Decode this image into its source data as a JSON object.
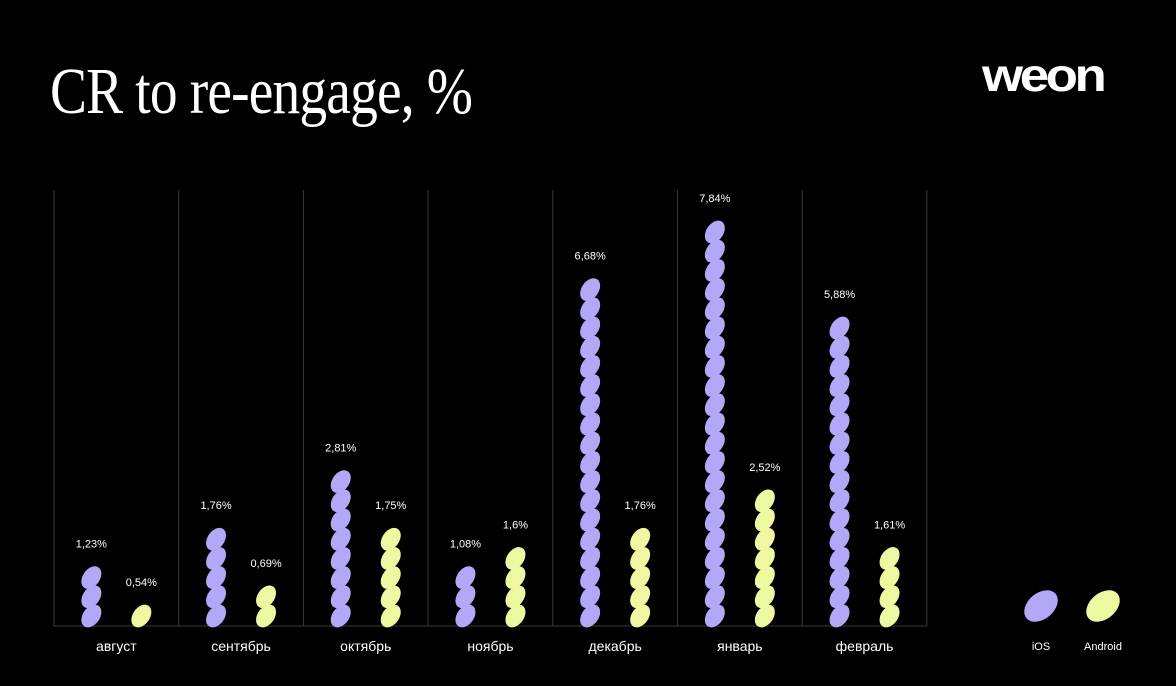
{
  "title": "CR to re-engage, %",
  "logo": "weon",
  "chart_data": {
    "type": "bar",
    "title": "CR to re-engage, %",
    "categories": [
      "август",
      "сентябрь",
      "октябрь",
      "ноябрь",
      "декабрь",
      "январь",
      "февраль"
    ],
    "series": [
      {
        "name": "iOS",
        "color": "#b3a8f8",
        "values": [
          1.23,
          1.76,
          2.81,
          1.08,
          6.68,
          7.84,
          5.88
        ],
        "labels": [
          "1,23%",
          "1,76%",
          "2,81%",
          "1,08%",
          "6,68%",
          "7,84%",
          "5,88%"
        ]
      },
      {
        "name": "Android",
        "color": "#eef8a0",
        "values": [
          0.54,
          0.69,
          1.75,
          1.6,
          1.76,
          2.52,
          1.61
        ],
        "labels": [
          "0,54%",
          "0,69%",
          "1,75%",
          "1,6%",
          "1,76%",
          "2,52%",
          "1,61%"
        ]
      }
    ],
    "mark": "stacked-ellipses",
    "ylim": [
      0,
      8.5
    ],
    "grid": "vertical separators",
    "legend": "bottom-right",
    "xlabel": "",
    "ylabel": ""
  }
}
